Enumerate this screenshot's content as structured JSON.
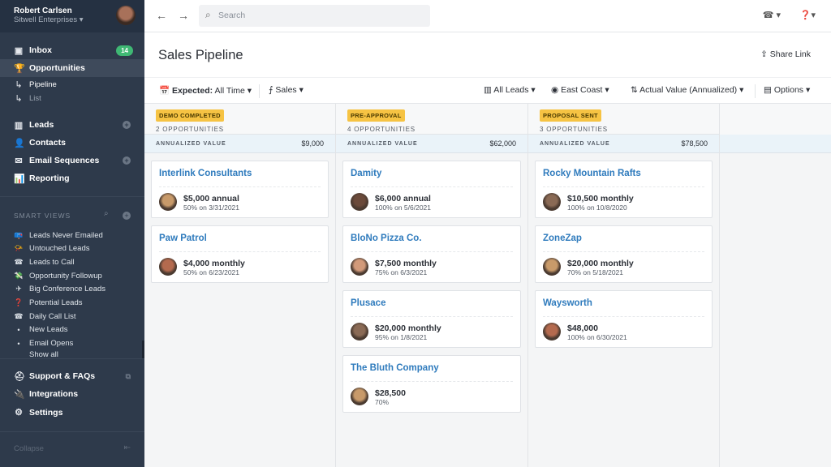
{
  "user": {
    "name": "Robert Carlsen",
    "org": "Sitwell Enterprises"
  },
  "nav": [
    {
      "label": "Inbox",
      "icon": "inbox-icon",
      "glyph": "▣",
      "badge": "14"
    },
    {
      "label": "Opportunities",
      "icon": "trophy-icon",
      "glyph": "🏆"
    },
    {
      "label": "Pipeline",
      "icon": "sub-arrow-icon",
      "glyph": "↳"
    },
    {
      "label": "List",
      "icon": "sub-arrow-icon",
      "glyph": "↳"
    },
    {
      "label": "Leads",
      "icon": "building-icon",
      "glyph": "▥"
    },
    {
      "label": "Contacts",
      "icon": "person-icon",
      "glyph": "👤"
    },
    {
      "label": "Email Sequences",
      "icon": "email-icon",
      "glyph": "✉"
    },
    {
      "label": "Reporting",
      "icon": "chart-icon",
      "glyph": "📊"
    }
  ],
  "smart_views": {
    "title": "SMART VIEWS",
    "items": [
      {
        "label": "Leads Never Emailed",
        "glyph": "📪"
      },
      {
        "label": "Untouched Leads",
        "glyph": "📯"
      },
      {
        "label": "Leads to Call",
        "glyph": "☎"
      },
      {
        "label": "Opportunity Followup",
        "glyph": "💸"
      },
      {
        "label": "Big Conference Leads",
        "glyph": "✈"
      },
      {
        "label": "Potential Leads",
        "glyph": "❓"
      },
      {
        "label": "Daily Call List",
        "glyph": "☎"
      },
      {
        "label": "New Leads",
        "glyph": "•"
      },
      {
        "label": "Email Opens",
        "glyph": "•"
      }
    ],
    "show_all": "Show all"
  },
  "bottom_nav": [
    {
      "label": "Support & FAQs",
      "glyph": "⛑"
    },
    {
      "label": "Integrations",
      "glyph": "🔌"
    },
    {
      "label": "Settings",
      "glyph": "⚙"
    }
  ],
  "collapse": "Collapse",
  "search_placeholder": "Search",
  "page_title": "Sales Pipeline",
  "share_link": "Share Link",
  "toolbar": {
    "expected_label": "Expected:",
    "expected_value": "All Time",
    "pipeline": "Sales",
    "leads": "All Leads",
    "territory": "East Coast",
    "sort": "Actual Value (Annualized)",
    "options": "Options"
  },
  "annualized_label": "ANNUALIZED VALUE",
  "columns": [
    {
      "stage": "DEMO COMPLETED",
      "count": "2 OPPORTUNITIES",
      "value": "$9,000",
      "cards": [
        {
          "name": "Interlink Consultants",
          "amount": "$5,000 annual",
          "prob": "50% on 3/31/2021"
        },
        {
          "name": "Paw Patrol",
          "amount": "$4,000 monthly",
          "prob": "50% on 6/23/2021"
        }
      ]
    },
    {
      "stage": "PRE-APPROVAL",
      "count": "4 OPPORTUNITIES",
      "value": "$62,000",
      "cards": [
        {
          "name": "Damity",
          "amount": "$6,000 annual",
          "prob": "100% on 5/6/2021"
        },
        {
          "name": "BloNo Pizza Co.",
          "amount": "$7,500 monthly",
          "prob": "75% on 6/3/2021"
        },
        {
          "name": "Plusace",
          "amount": "$20,000 monthly",
          "prob": "95% on 1/8/2021"
        },
        {
          "name": "The Bluth Company",
          "amount": "$28,500",
          "prob": "70%"
        }
      ]
    },
    {
      "stage": "PROPOSAL SENT",
      "count": "3 OPPORTUNITIES",
      "value": "$78,500",
      "cards": [
        {
          "name": "Rocky Mountain Rafts",
          "amount": "$10,500 monthly",
          "prob": "100% on 10/8/2020"
        },
        {
          "name": "ZoneZap",
          "amount": "$20,000 monthly",
          "prob": "70% on 5/18/2021"
        },
        {
          "name": "Waysworth",
          "amount": "$48,000",
          "prob": "100% on 6/30/2021"
        }
      ]
    }
  ]
}
